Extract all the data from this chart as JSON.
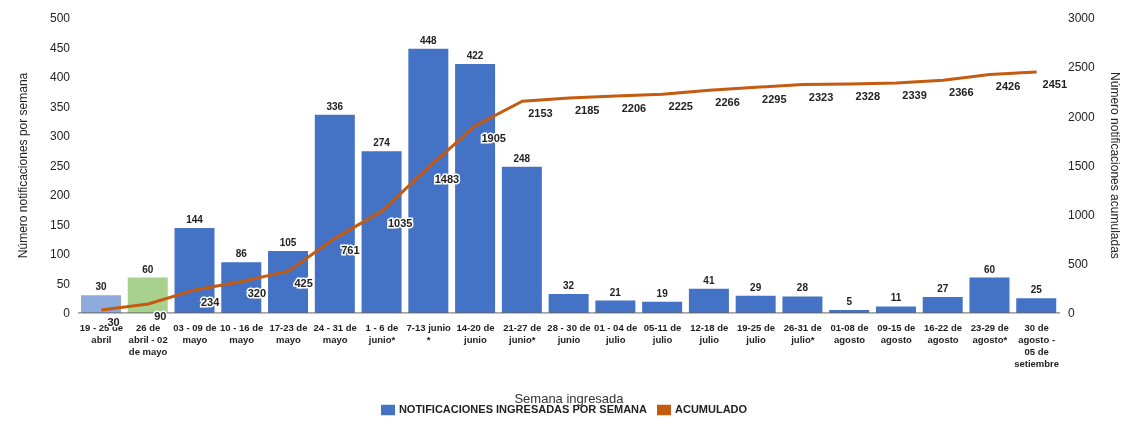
{
  "chart_data": {
    "type": "bar",
    "xlabel": "Semana ingresada",
    "ylabel": "Número notificaciones por semana",
    "y2label": "Número notificaciones acumuladas",
    "categories": [
      "19 - 25 de abril",
      "26 de abril - 02 de mayo",
      "03 - 09 de mayo",
      "10 - 16 de mayo",
      "17-23 de mayo",
      "24 - 31 de mayo",
      "1 - 6 de junio*",
      "7-13 junio *",
      "14-20 de junio",
      "21-27 de junio*",
      "28 - 30 de junio",
      "01 - 04 de julio",
      "05-11 de julio",
      "12-18 de julio",
      "19-25 de julio",
      "26-31 de julio*",
      "01-08 de agosto",
      "09-15 de agosto",
      "16-22 de agosto",
      "23-29 de agosto*",
      "30 de agosto - 05 de setiembre"
    ],
    "series": [
      {
        "name": "NOTIFICACIONES INGRESADAS POR SEMANA",
        "color": "#4472c4",
        "colors": [
          "#8faadc",
          "#a9d18e",
          "#4472c4",
          "#4472c4",
          "#4472c4",
          "#4472c4",
          "#4472c4",
          "#4472c4",
          "#4472c4",
          "#4472c4",
          "#4472c4",
          "#4472c4",
          "#4472c4",
          "#4472c4",
          "#4472c4",
          "#4472c4",
          "#4472c4",
          "#4472c4",
          "#4472c4",
          "#4472c4",
          "#4472c4"
        ],
        "values": [
          30,
          60,
          144,
          86,
          105,
          336,
          274,
          448,
          422,
          248,
          32,
          21,
          19,
          41,
          29,
          28,
          5,
          11,
          27,
          60,
          25
        ]
      },
      {
        "name": "ACUMULADO",
        "type": "line",
        "axis": "y2",
        "color": "#c55a11",
        "values": [
          30,
          90,
          234,
          320,
          425,
          761,
          1035,
          1483,
          1905,
          2153,
          2185,
          2206,
          2225,
          2266,
          2295,
          2323,
          2328,
          2339,
          2366,
          2426,
          2451
        ]
      }
    ],
    "ylim": [
      0,
      500
    ],
    "yticks": [
      0,
      50,
      100,
      150,
      200,
      250,
      300,
      350,
      400,
      450,
      500
    ],
    "y2lim": [
      0,
      3000
    ],
    "y2ticks": [
      0,
      500,
      1000,
      1500,
      2000,
      2500,
      3000
    ],
    "grid": false,
    "legend": "bottom",
    "marker": "none",
    "data_labels": true
  }
}
